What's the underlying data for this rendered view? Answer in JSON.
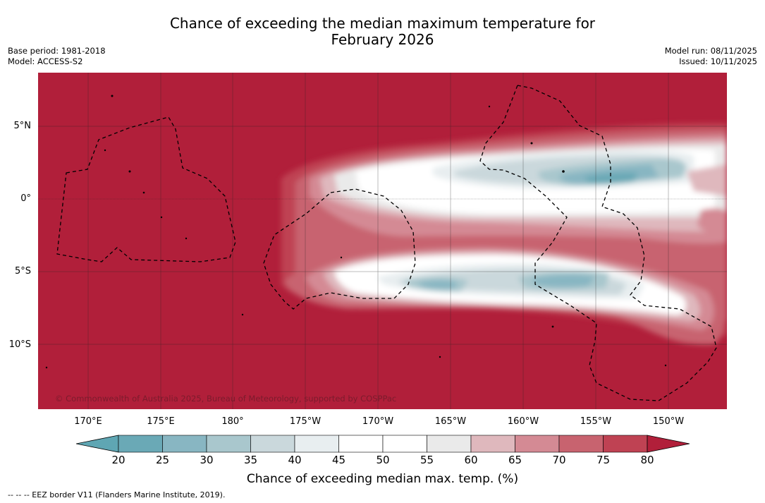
{
  "title": {
    "line1": "Chance of exceeding the median maximum temperature for",
    "line2": "February 2026"
  },
  "meta": {
    "base_period": "Base period: 1981-2018",
    "model": "Model: ACCESS-S2",
    "model_run": "Model run: 08/11/2025",
    "issued": "Issued: 10/11/2025"
  },
  "map": {
    "copyright": "© Commonwealth of Australia 2025, Bureau of Meteorology, supported by COSPPac",
    "lat_labels": [
      "5°N",
      "0°",
      "5°S",
      "10°S"
    ],
    "lon_labels": [
      "170°E",
      "175°E",
      "180°",
      "175°W",
      "170°W",
      "165°W",
      "160°W",
      "155°W",
      "150°W"
    ]
  },
  "colorbar": {
    "ticks": [
      "20",
      "25",
      "30",
      "35",
      "40",
      "45",
      "50",
      "55",
      "60",
      "65",
      "70",
      "75",
      "80"
    ],
    "colors": [
      "#5fa6b3",
      "#6aa9b6",
      "#88b6c2",
      "#a9c7cd",
      "#cad8dc",
      "#e8eef0",
      "#ffffff",
      "#ffffff",
      "#eaeaea",
      "#dfb8bd",
      "#d48a94",
      "#c8636f",
      "#bf4253",
      "#b11f3a"
    ],
    "label": "Chance of exceeding median max. temp. (%)"
  },
  "footer": "--  --  -- EEZ border V11 (Flanders Marine Institute, 2019)."
}
